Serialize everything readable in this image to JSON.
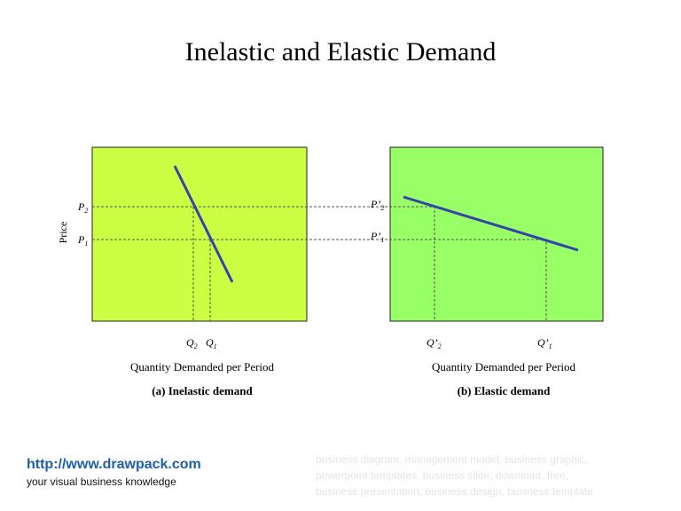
{
  "header": {
    "title": "Inelastic and Elastic Demand"
  },
  "y_axis_label": "Price",
  "panels": [
    {
      "p_labels": [
        {
          "main": "P",
          "sub": "2"
        },
        {
          "main": "P",
          "sub": "1"
        }
      ],
      "q_labels": [
        {
          "main": "Q",
          "sub": "2"
        },
        {
          "main": "Q",
          "sub": "1"
        }
      ],
      "x_axis_label": "Quantity Demanded per Period",
      "caption": "(a) Inelastic demand"
    },
    {
      "p_labels": [
        {
          "main": "P’",
          "sub": "2"
        },
        {
          "main": "P’",
          "sub": "1"
        }
      ],
      "q_labels": [
        {
          "main": "Q’",
          "sub": "2"
        },
        {
          "main": "Q’",
          "sub": "1"
        }
      ],
      "x_axis_label": "Quantity Demanded per Period",
      "caption": "(b) Elastic demand"
    }
  ],
  "footer": {
    "url": "http://www.drawpack.com",
    "tagline": "your visual business knowledge",
    "keywords": [
      "business diagram, management model, business graphic,",
      "powerpoint templates, business slide, download, free,",
      "business presentation, business design, business template"
    ]
  }
}
